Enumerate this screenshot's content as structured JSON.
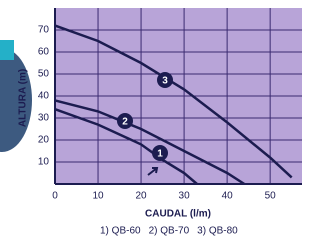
{
  "chart_data": {
    "type": "line",
    "x_label": "CAUDAL (l/m)",
    "y_label": "ALTURA (m)",
    "xlim": [
      0,
      57.4
    ],
    "ylim": [
      0,
      80
    ],
    "xticks": [
      0,
      10,
      20,
      30,
      40,
      50
    ],
    "yticks": [
      10,
      20,
      30,
      40,
      50,
      60,
      70
    ],
    "grid": true,
    "series": [
      {
        "name": "1) QB-60",
        "label": "1",
        "color": "#1c1c50",
        "x": [
          0,
          10,
          20,
          25,
          30,
          33
        ],
        "values": [
          34,
          27,
          18,
          11,
          5,
          0
        ]
      },
      {
        "name": "2) QB-70",
        "label": "2",
        "color": "#1c1c50",
        "x": [
          0,
          10,
          20,
          30,
          40,
          44
        ],
        "values": [
          38,
          33,
          25,
          15,
          5,
          0
        ]
      },
      {
        "name": "3) QB-80",
        "label": "3",
        "color": "#1c1c50",
        "x": [
          0,
          10,
          20,
          30,
          40,
          50,
          55
        ],
        "values": [
          72,
          65,
          55,
          43,
          28,
          12,
          3
        ]
      }
    ]
  }
}
